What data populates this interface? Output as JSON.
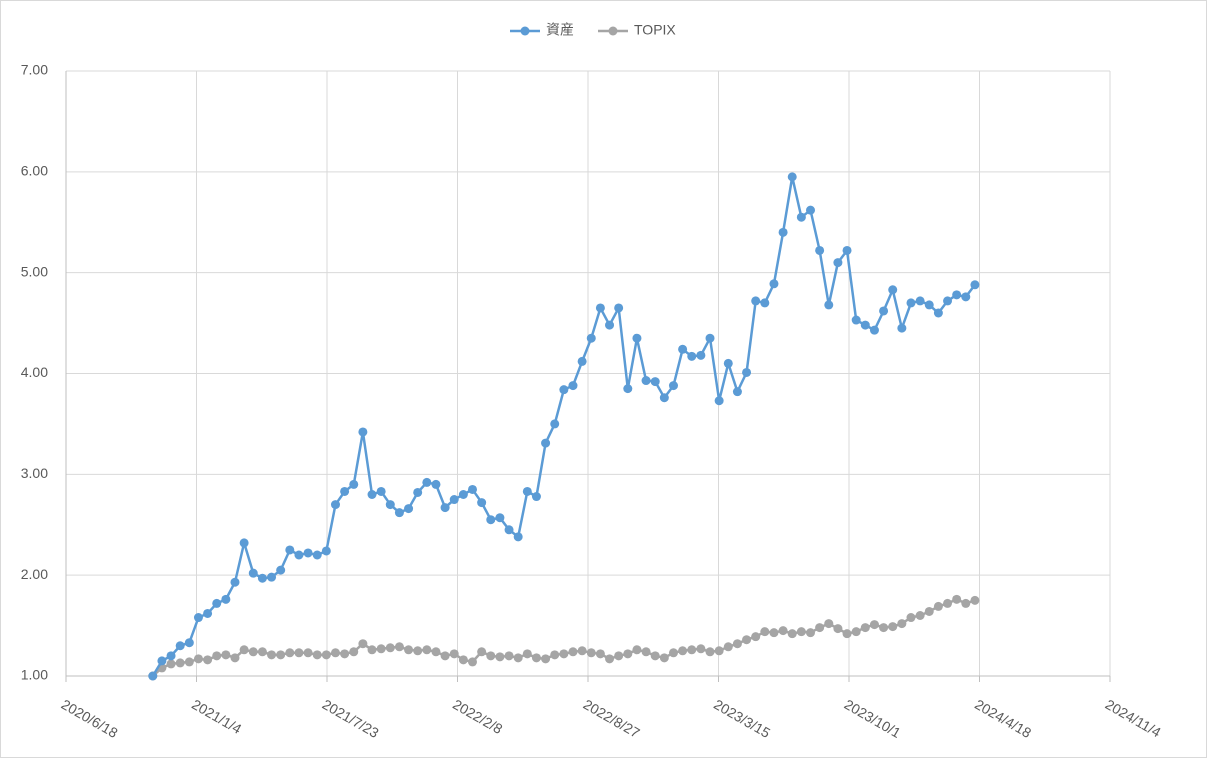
{
  "chart_data": {
    "type": "line",
    "x": [
      "2020/10/29",
      "2020/11/12",
      "2020/11/26",
      "2020/12/10",
      "2020/12/24",
      "2021/1/7",
      "2021/1/21",
      "2021/2/4",
      "2021/2/18",
      "2021/3/4",
      "2021/3/18",
      "2021/4/1",
      "2021/4/15",
      "2021/4/29",
      "2021/5/13",
      "2021/5/27",
      "2021/6/10",
      "2021/6/24",
      "2021/7/8",
      "2021/7/22",
      "2021/8/5",
      "2021/8/19",
      "2021/9/2",
      "2021/9/16",
      "2021/9/30",
      "2021/10/14",
      "2021/10/28",
      "2021/11/11",
      "2021/11/25",
      "2021/12/9",
      "2021/12/23",
      "2022/1/6",
      "2022/1/20",
      "2022/2/3",
      "2022/2/17",
      "2022/3/3",
      "2022/3/17",
      "2022/3/31",
      "2022/4/14",
      "2022/4/28",
      "2022/5/12",
      "2022/5/26",
      "2022/6/9",
      "2022/6/23",
      "2022/7/7",
      "2022/7/21",
      "2022/8/4",
      "2022/8/18",
      "2022/9/1",
      "2022/9/15",
      "2022/9/29",
      "2022/10/13",
      "2022/10/27",
      "2022/11/10",
      "2022/11/24",
      "2022/12/8",
      "2022/12/22",
      "2023/1/5",
      "2023/1/19",
      "2023/2/2",
      "2023/2/16",
      "2023/3/2",
      "2023/3/16",
      "2023/3/30",
      "2023/4/13",
      "2023/4/27",
      "2023/5/11",
      "2023/5/25",
      "2023/6/8",
      "2023/6/22",
      "2023/7/6",
      "2023/7/20",
      "2023/8/3",
      "2023/8/17",
      "2023/8/31",
      "2023/9/14",
      "2023/9/28",
      "2023/10/12",
      "2023/10/26",
      "2023/11/9",
      "2023/11/23",
      "2023/12/7",
      "2023/12/21",
      "2024/1/4",
      "2024/1/18",
      "2024/2/1",
      "2024/2/15",
      "2024/2/29",
      "2024/3/14",
      "2024/3/28",
      "2024/4/11"
    ],
    "series": [
      {
        "name": "資産",
        "color": "#5b9bd5",
        "values": [
          1.0,
          1.15,
          1.2,
          1.3,
          1.33,
          1.58,
          1.62,
          1.72,
          1.76,
          1.93,
          2.32,
          2.02,
          1.97,
          1.98,
          2.05,
          2.25,
          2.2,
          2.22,
          2.2,
          2.24,
          2.7,
          2.83,
          2.9,
          3.42,
          2.8,
          2.83,
          2.7,
          2.62,
          2.66,
          2.82,
          2.92,
          2.9,
          2.67,
          2.75,
          2.8,
          2.85,
          2.72,
          2.55,
          2.57,
          2.45,
          2.38,
          2.83,
          2.78,
          3.31,
          3.5,
          3.84,
          3.88,
          4.12,
          4.35,
          4.65,
          4.48,
          4.65,
          3.85,
          4.35,
          3.93,
          3.92,
          3.76,
          3.88,
          4.24,
          4.17,
          4.18,
          4.35,
          3.73,
          4.1,
          3.82,
          4.01,
          4.72,
          4.7,
          4.89,
          5.4,
          5.95,
          5.55,
          5.62,
          5.22,
          4.68,
          5.1,
          5.22,
          4.53,
          4.48,
          4.43,
          4.62,
          4.83,
          4.45,
          4.7,
          4.72,
          4.68,
          4.6,
          4.72,
          4.78,
          4.76,
          4.88
        ]
      },
      {
        "name": "TOPIX",
        "color": "#a5a5a5",
        "values": [
          1.0,
          1.08,
          1.12,
          1.13,
          1.14,
          1.17,
          1.16,
          1.2,
          1.21,
          1.18,
          1.26,
          1.24,
          1.24,
          1.21,
          1.21,
          1.23,
          1.23,
          1.23,
          1.21,
          1.21,
          1.23,
          1.22,
          1.24,
          1.32,
          1.26,
          1.27,
          1.28,
          1.29,
          1.26,
          1.25,
          1.26,
          1.24,
          1.2,
          1.22,
          1.16,
          1.14,
          1.24,
          1.2,
          1.19,
          1.2,
          1.18,
          1.22,
          1.18,
          1.17,
          1.21,
          1.22,
          1.24,
          1.25,
          1.23,
          1.22,
          1.17,
          1.2,
          1.22,
          1.26,
          1.24,
          1.2,
          1.18,
          1.23,
          1.25,
          1.26,
          1.27,
          1.24,
          1.25,
          1.29,
          1.32,
          1.36,
          1.39,
          1.44,
          1.43,
          1.45,
          1.42,
          1.44,
          1.43,
          1.48,
          1.52,
          1.47,
          1.42,
          1.44,
          1.48,
          1.51,
          1.48,
          1.49,
          1.52,
          1.58,
          1.6,
          1.64,
          1.69,
          1.72,
          1.76,
          1.72,
          1.75
        ]
      }
    ],
    "xlim": [
      "2020/6/18",
      "2024/11/4"
    ],
    "xticks": [
      "2020/6/18",
      "2021/1/4",
      "2021/7/23",
      "2022/2/8",
      "2022/8/27",
      "2023/3/15",
      "2023/10/1",
      "2024/4/18",
      "2024/11/4"
    ],
    "ylim": [
      1,
      7
    ],
    "yticks": [
      {
        "value": 1,
        "label": "1.00"
      },
      {
        "value": 2,
        "label": "2.00"
      },
      {
        "value": 3,
        "label": "3.00"
      },
      {
        "value": 4,
        "label": "4.00"
      },
      {
        "value": 5,
        "label": "5.00"
      },
      {
        "value": 6,
        "label": "6.00"
      },
      {
        "value": 7,
        "label": "7.00"
      }
    ],
    "grid": true,
    "legend": "top"
  }
}
